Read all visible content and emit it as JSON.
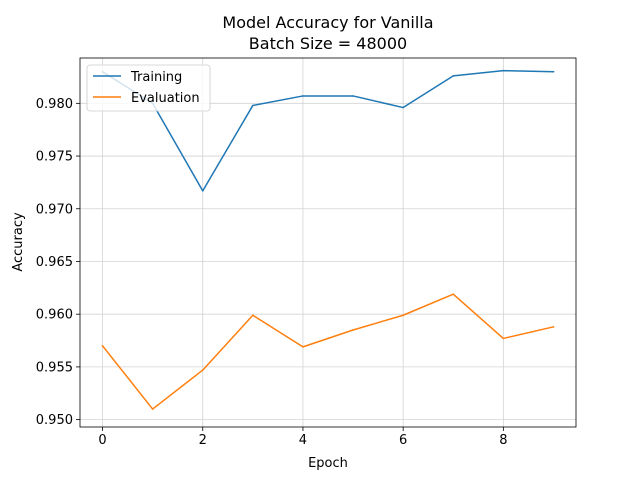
{
  "chart_data": {
    "type": "line",
    "title": "Model Accuracy for Vanilla",
    "subtitle": "Batch Size = 48000",
    "xlabel": "Epoch",
    "ylabel": "Accuracy",
    "x": [
      0,
      1,
      2,
      3,
      4,
      5,
      6,
      7,
      8,
      9
    ],
    "xlim": [
      -0.45,
      9.45
    ],
    "ylim": [
      0.9493,
      0.9843
    ],
    "xticks": [
      0,
      2,
      4,
      6,
      8
    ],
    "xtick_labels": [
      "0",
      "2",
      "4",
      "6",
      "8"
    ],
    "yticks": [
      0.95,
      0.955,
      0.96,
      0.965,
      0.97,
      0.975,
      0.98
    ],
    "ytick_labels": [
      "0.950",
      "0.955",
      "0.960",
      "0.965",
      "0.970",
      "0.975",
      "0.980"
    ],
    "grid": true,
    "legend_position": "top-left",
    "series": [
      {
        "name": "Training",
        "color": "#1f77b4",
        "values": [
          0.983,
          0.98,
          0.9717,
          0.9798,
          0.9807,
          0.9807,
          0.9796,
          0.9826,
          0.9831,
          0.983
        ]
      },
      {
        "name": "Evaluation",
        "color": "#ff7f0e",
        "values": [
          0.957,
          0.951,
          0.9547,
          0.9599,
          0.9569,
          0.9585,
          0.9599,
          0.9619,
          0.9577,
          0.9588
        ]
      }
    ]
  }
}
